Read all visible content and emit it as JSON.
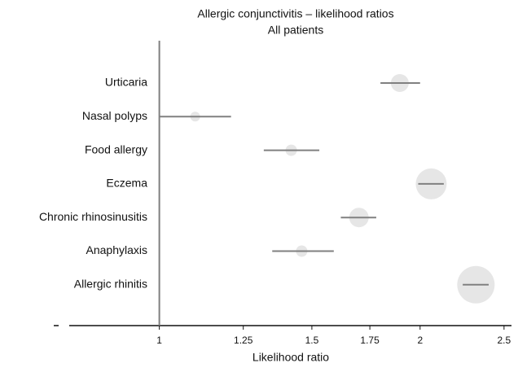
{
  "chart_data": {
    "type": "forest",
    "title": "Allergic conjunctivitis – likelihood ratios",
    "subtitle": "All patients",
    "x_label": "Likelihood ratio",
    "categories": [
      "Urticaria",
      "Nasal polyps",
      "Food allergy",
      "Eczema",
      "Chronic rhinosinusitis",
      "Anaphylaxis",
      "Allergic rhinitis"
    ],
    "values": [
      1.895,
      1.1,
      1.42,
      2.06,
      1.7,
      1.46,
      2.32
    ],
    "lower": [
      1.8,
      1.0,
      1.32,
      1.99,
      1.62,
      1.35,
      2.24
    ],
    "upper": [
      2.0,
      1.21,
      1.53,
      2.13,
      1.78,
      1.59,
      2.4
    ],
    "sizes": [
      11,
      6,
      7,
      19,
      12,
      7,
      23
    ],
    "xlim": [
      0.787,
      2.55
    ],
    "xticks": [
      1,
      1.25,
      1.5,
      1.75,
      2,
      2.5
    ],
    "xscale": "log",
    "reference": 1,
    "marker_color": "#e6e6e6",
    "line_color": "#808080"
  }
}
